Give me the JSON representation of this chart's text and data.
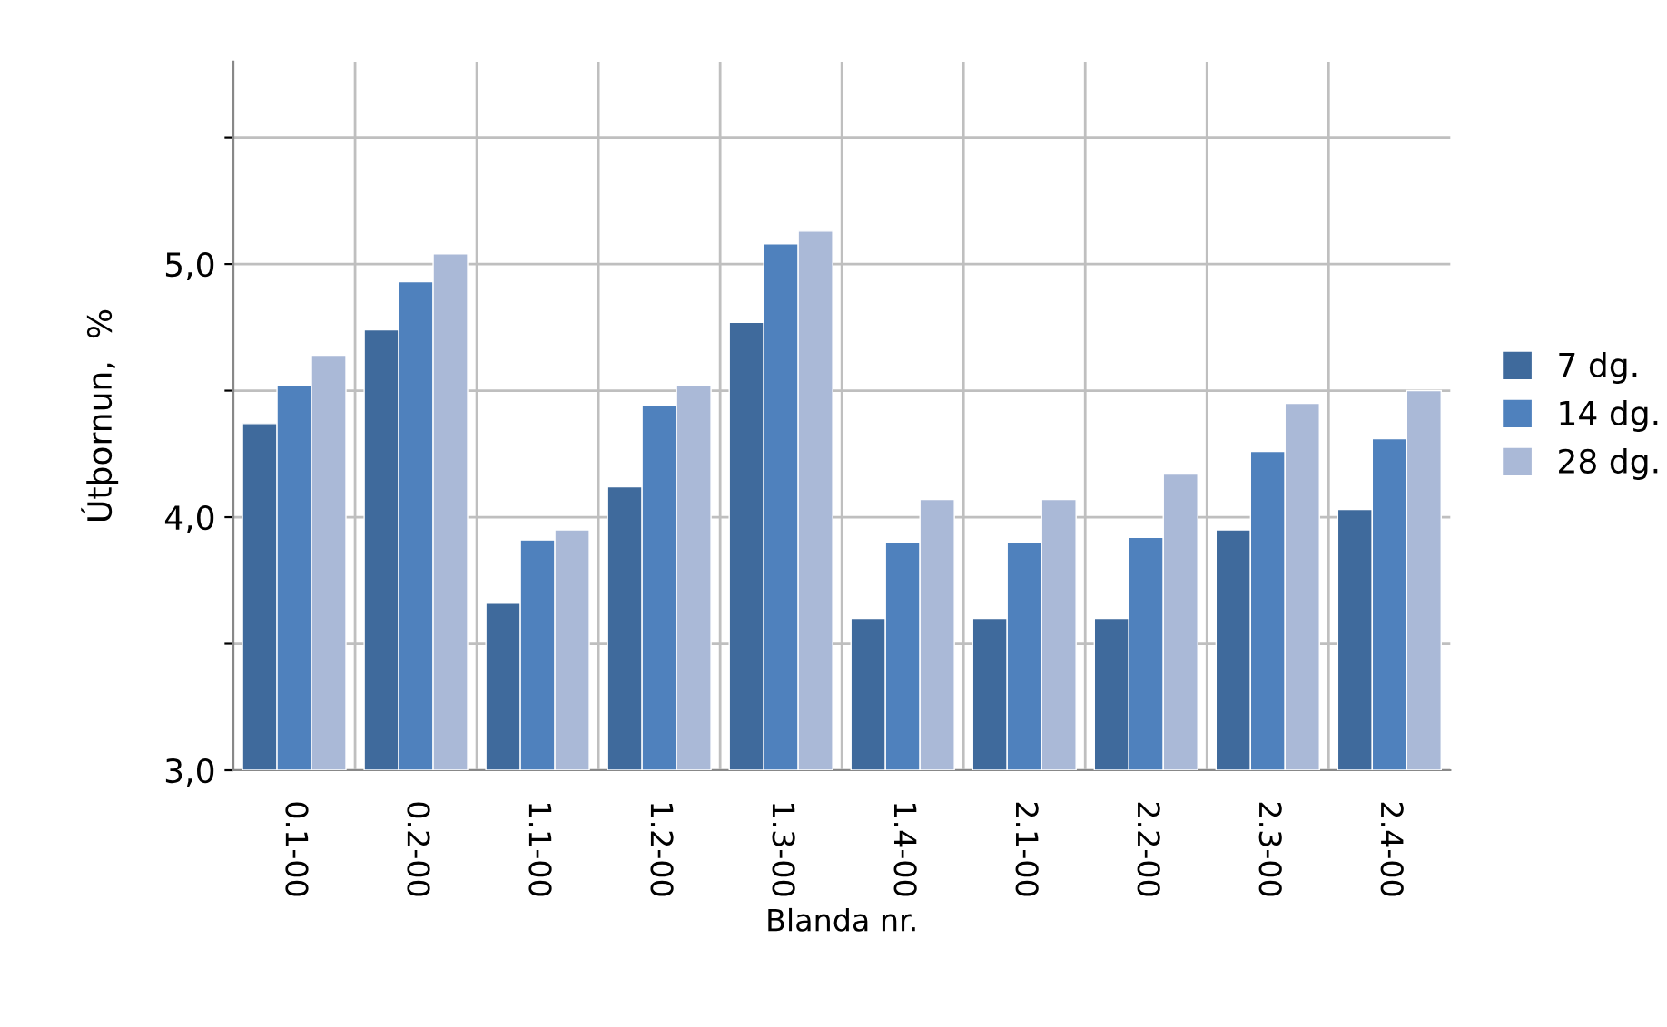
{
  "chart_data": {
    "type": "bar",
    "xlabel": "Blanda nr.",
    "ylabel": "Útþornun,  %",
    "categories": [
      "0.1-00",
      "0.2-00",
      "1.1-00",
      "1.2-00",
      "1.3-00",
      "1.4-00",
      "2.1-00",
      "2.2-00",
      "2.3-00",
      "2.4-00"
    ],
    "series": [
      {
        "name": "7 dg.",
        "color": "#3f6a9c",
        "values": [
          4.37,
          4.74,
          3.66,
          4.12,
          4.77,
          3.6,
          3.6,
          3.6,
          3.95,
          4.03
        ]
      },
      {
        "name": "14 dg.",
        "color": "#4f81bd",
        "values": [
          4.52,
          4.93,
          3.91,
          4.44,
          5.08,
          3.9,
          3.9,
          3.92,
          4.26,
          4.31
        ]
      },
      {
        "name": "28 dg.",
        "color": "#aab9d7",
        "values": [
          4.64,
          5.04,
          3.95,
          4.52,
          5.13,
          4.07,
          4.07,
          4.17,
          4.45,
          4.5
        ]
      }
    ],
    "ylim": [
      3.0,
      5.8
    ],
    "yticks": [
      {
        "value": 3.0,
        "label": "3,0"
      },
      {
        "value": 3.5,
        "label": null
      },
      {
        "value": 4.0,
        "label": "4,0"
      },
      {
        "value": 4.5,
        "label": null
      },
      {
        "value": 5.0,
        "label": "5,0"
      },
      {
        "value": 5.5,
        "label": null
      }
    ],
    "grid": true,
    "legend": "right"
  }
}
